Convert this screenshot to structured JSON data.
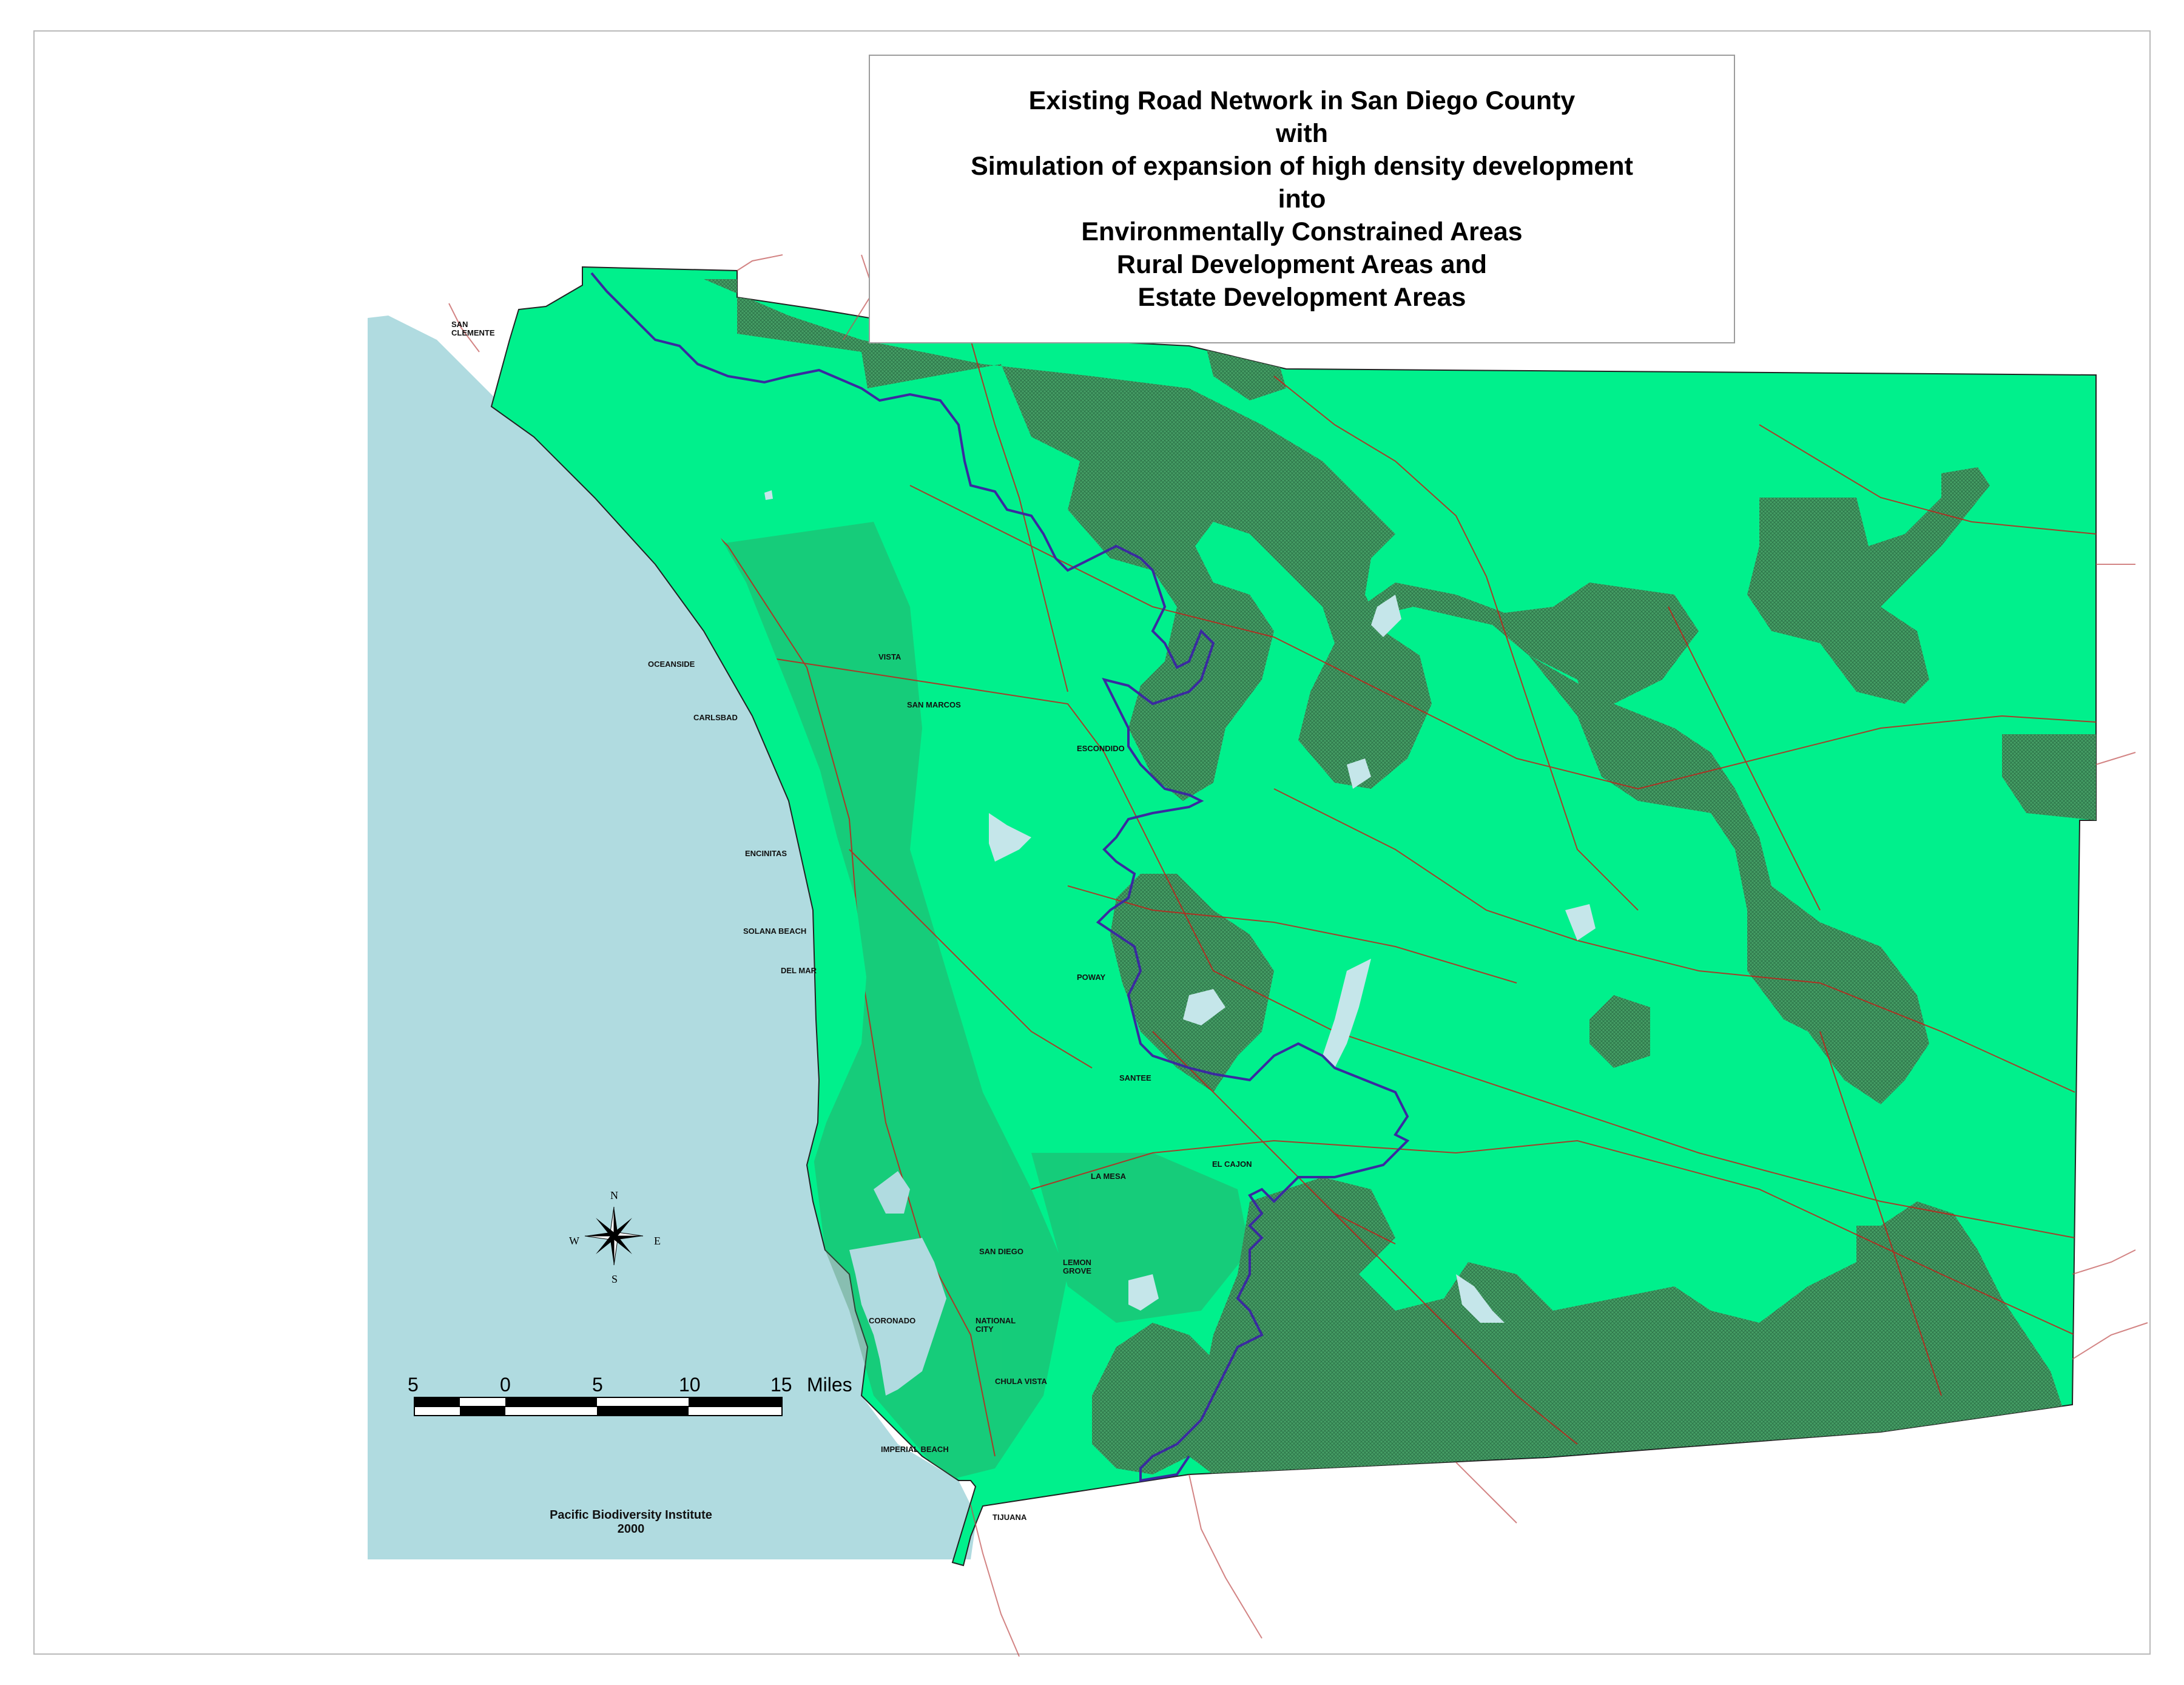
{
  "title_lines": [
    "Existing Road Network in San Diego County",
    "with",
    "Simulation of expansion of high density development",
    "into",
    "Environmentally Constrained Areas",
    "Rural Development Areas and",
    "Estate Development Areas"
  ],
  "places": {
    "san_clemente": [
      "SAN",
      "CLEMENTE"
    ],
    "oceanside": "OCEANSIDE",
    "vista": "VISTA",
    "carlsbad": "CARLSBAD",
    "san_marcos": "SAN MARCOS",
    "escondido": "ESCONDIDO",
    "encinitas": "ENCINITAS",
    "solana_beach": "SOLANA BEACH",
    "del_mar": "DEL MAR",
    "poway": "POWAY",
    "santee": "SANTEE",
    "el_cajon": "EL CAJON",
    "la_mesa": "LA MESA",
    "san_diego": "SAN DIEGO",
    "lemon_grove": [
      "LEMON",
      "GROVE"
    ],
    "coronado": "CORONADO",
    "national_city": [
      "NATIONAL",
      "CITY"
    ],
    "chula_vista": "CHULA VISTA",
    "imperial_beach": "IMPERIAL BEACH",
    "tijuana": "TIJUANA"
  },
  "compass": {
    "n": "N",
    "s": "S",
    "e": "E",
    "w": "W",
    "icon": "compass-rose-icon"
  },
  "scale_bar": {
    "ticks": [
      "5",
      "0",
      "5",
      "10",
      "15"
    ],
    "unit": "Miles"
  },
  "credit": {
    "org": "Pacific Biodiversity Institute",
    "year": "2000"
  },
  "colors": {
    "ocean": "#b0dbe0",
    "land": "#00f08c",
    "constrained_area": "#3e8a5a",
    "roads": "#c0221a",
    "boundary_line": "#3a2aa0",
    "water_bodies": "#c5e6ea"
  }
}
